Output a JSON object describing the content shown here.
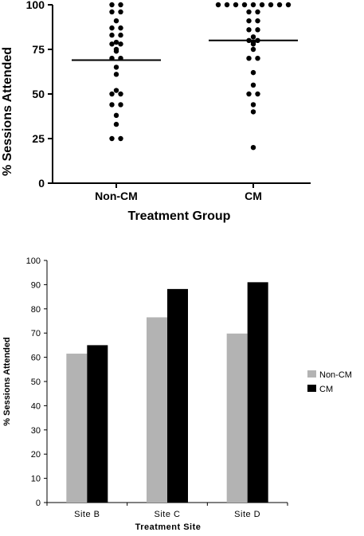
{
  "chart_data": [
    {
      "type": "scatter",
      "xlabel": "Treatment Group",
      "ylabel": "% Sessions Attended",
      "ylim": [
        0,
        100
      ],
      "yticks": [
        "0",
        "25",
        "50",
        "75",
        "100"
      ],
      "categories": [
        "Non-CM",
        "CM"
      ],
      "groups": [
        {
          "name": "Non-CM",
          "mean": 69,
          "values": [
            100,
            100,
            96,
            96,
            91,
            87,
            87,
            83,
            83,
            79,
            78,
            78,
            75,
            74,
            70,
            70,
            65,
            61,
            52,
            50,
            50,
            44,
            44,
            38,
            33,
            25,
            25
          ]
        },
        {
          "name": "CM",
          "mean": 80,
          "values": [
            100,
            100,
            100,
            100,
            100,
            100,
            100,
            100,
            100,
            96,
            96,
            91,
            91,
            86,
            86,
            82,
            80,
            80,
            79,
            78,
            75,
            70,
            70,
            62,
            55,
            50,
            50,
            44,
            40,
            20
          ]
        }
      ],
      "grid": false
    },
    {
      "type": "bar",
      "xlabel": "Treatment Site",
      "ylabel": "% Sessions Attended",
      "ylim": [
        0,
        100
      ],
      "yticks": [
        "0",
        "10",
        "20",
        "30",
        "40",
        "50",
        "60",
        "70",
        "80",
        "90",
        "100"
      ],
      "categories": [
        "Site B",
        "Site C",
        "Site D"
      ],
      "series": [
        {
          "name": "Non-CM",
          "color": "#b3b3b3",
          "values": [
            61.5,
            76.5,
            69.8
          ]
        },
        {
          "name": "CM",
          "color": "#000000",
          "values": [
            65,
            88.2,
            91
          ]
        }
      ],
      "legend": "right",
      "grid": false
    }
  ]
}
